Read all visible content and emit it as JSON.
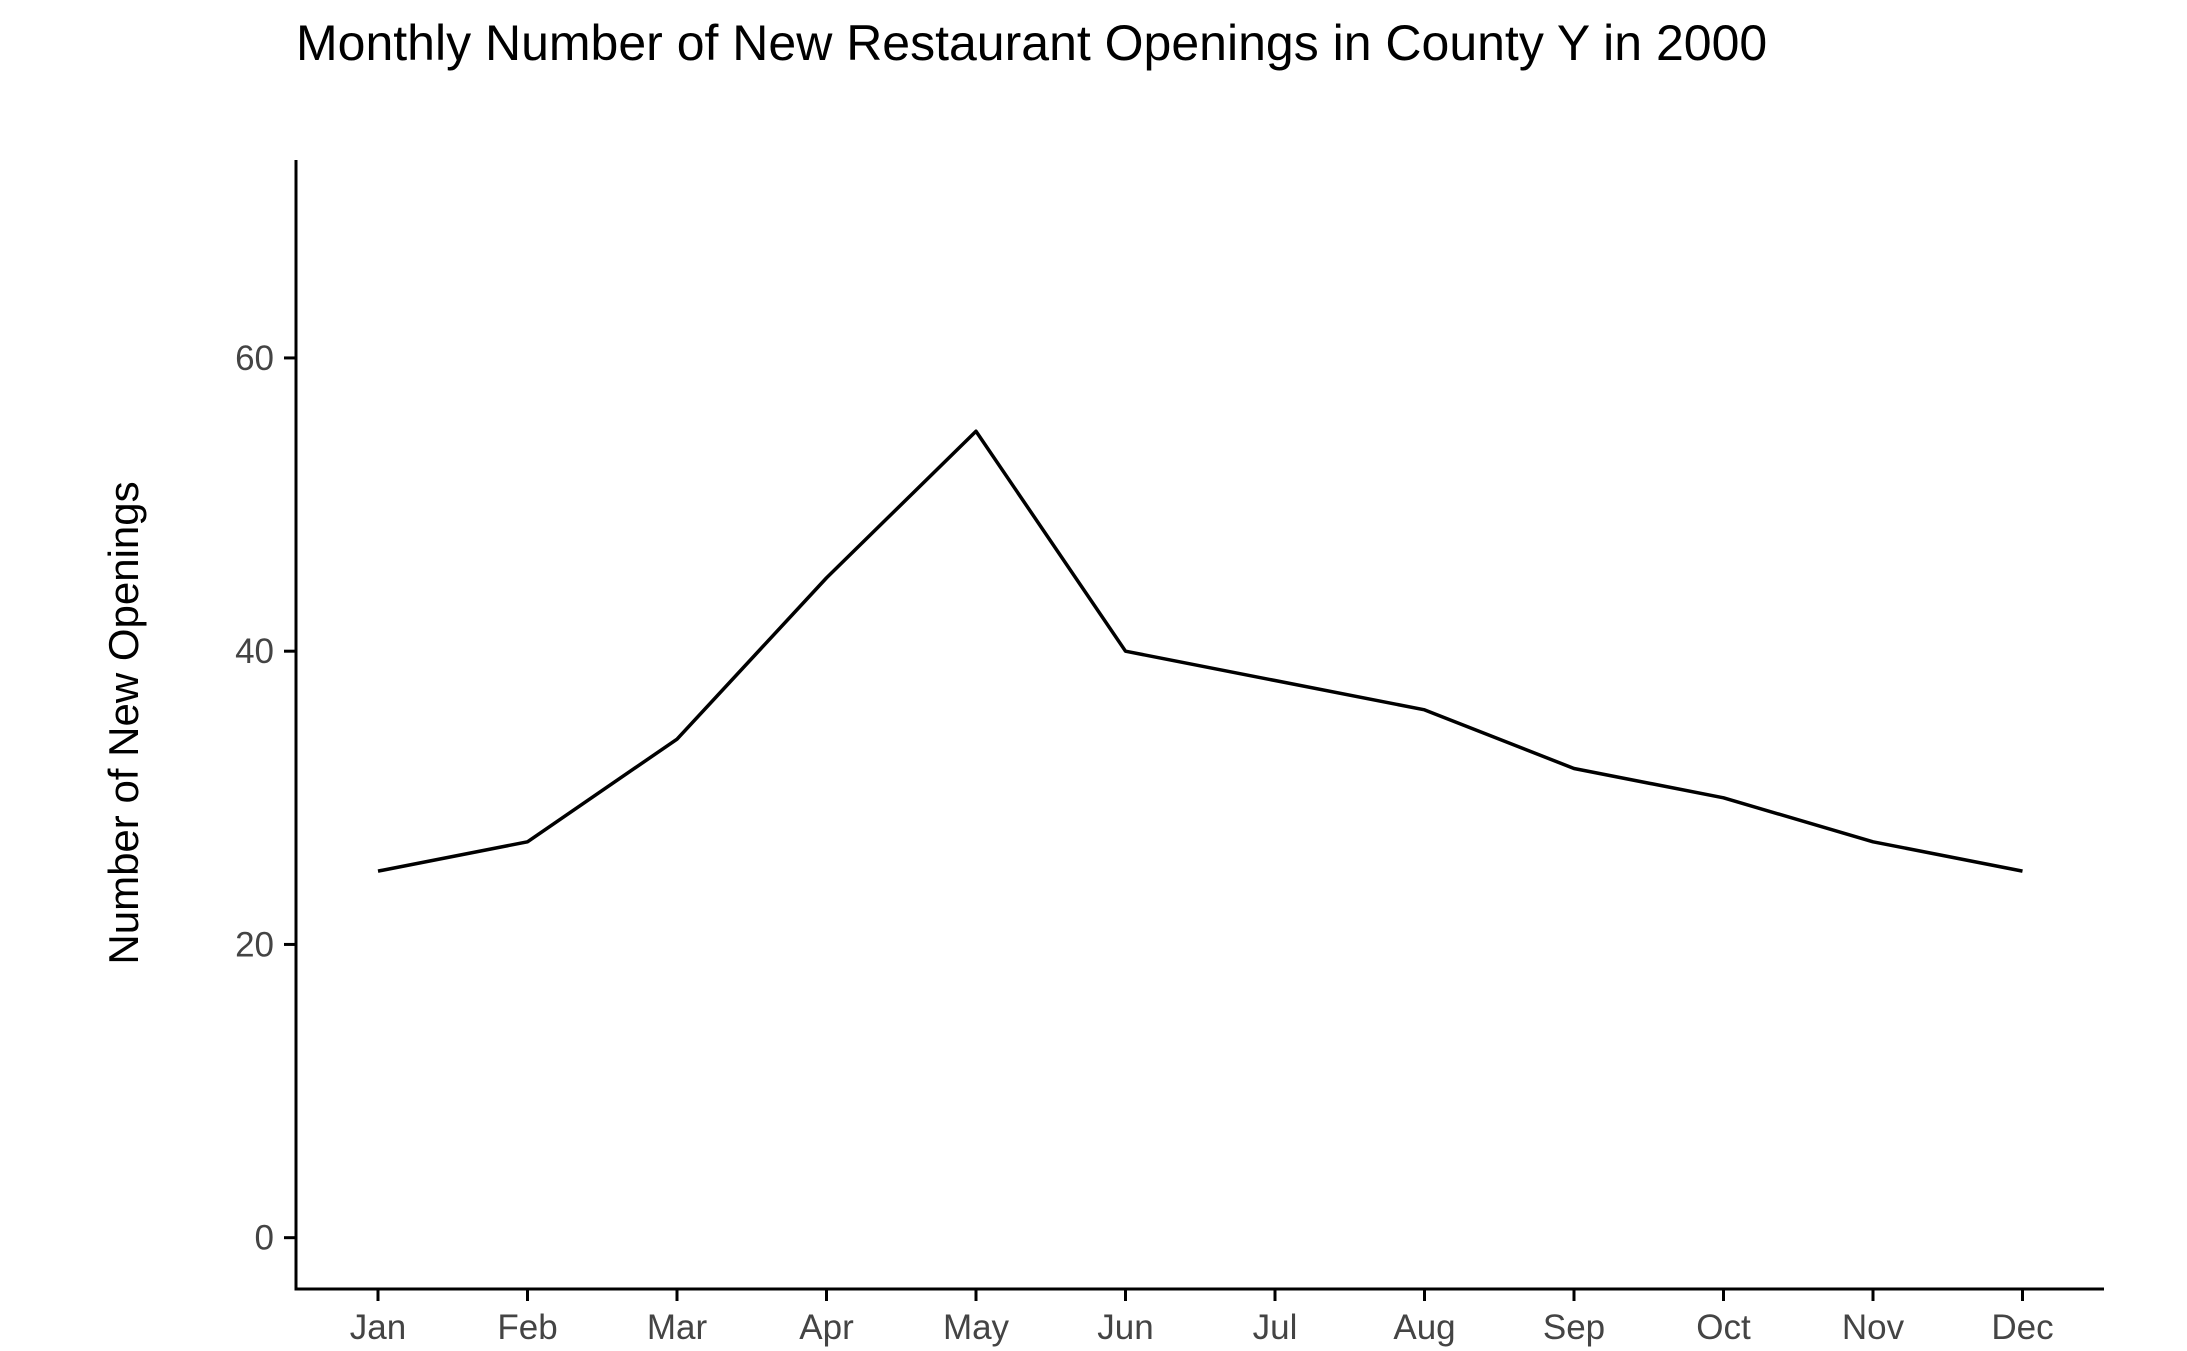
{
  "chart_data": {
    "type": "line",
    "title": "Monthly Number of New Restaurant Openings in County Y in 2000",
    "xlabel": "",
    "ylabel": "Number of New Openings",
    "categories": [
      "Jan",
      "Feb",
      "Mar",
      "Apr",
      "May",
      "Jun",
      "Jul",
      "Aug",
      "Sep",
      "Oct",
      "Nov",
      "Dec"
    ],
    "series": [
      {
        "values": [
          25,
          27,
          34,
          45,
          55,
          40,
          38,
          36,
          32,
          30,
          27,
          25
        ]
      }
    ],
    "ylim": [
      -3.5,
      73.5
    ],
    "yticks": [
      0,
      20,
      40,
      60
    ],
    "grid": false,
    "legend": "none",
    "colors": {
      "line": "#000000",
      "axis": "#000000",
      "tick_text": "#444444"
    }
  }
}
